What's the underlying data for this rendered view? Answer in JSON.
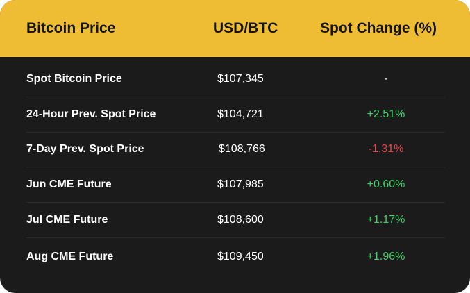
{
  "header": {
    "col1": "Bitcoin Price",
    "col2": "USD/BTC",
    "col3": "Spot Change (%)"
  },
  "rows": [
    {
      "label": "Spot Bitcoin Price",
      "price": "$107,345",
      "change": "-",
      "trend": "neutral"
    },
    {
      "label": "24-Hour Prev. Spot Price",
      "price": "$104,721",
      "change": "+2.51%",
      "trend": "up"
    },
    {
      "label": "7-Day Prev. Spot Price",
      "price": "$108,766",
      "change": "-1.31%",
      "trend": "down"
    },
    {
      "label": "Jun CME Future",
      "price": "$107,985",
      "change": "+0.60%",
      "trend": "up"
    },
    {
      "label": "Jul CME Future",
      "price": "$108,600",
      "change": "+1.17%",
      "trend": "up"
    },
    {
      "label": "Aug CME Future",
      "price": "$109,450",
      "change": "+1.96%",
      "trend": "up"
    }
  ],
  "colors": {
    "header_bg": "#efbd34",
    "body_bg": "#1b1b1b",
    "positive": "#3ecf63",
    "negative": "#e8434a"
  }
}
